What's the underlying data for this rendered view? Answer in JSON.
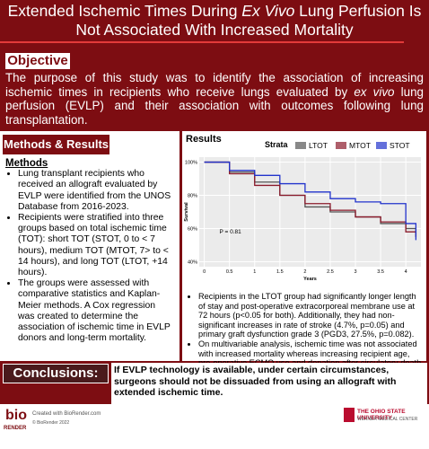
{
  "header": {
    "title": [
      "Extended Ischemic Times During ",
      "Ex Vivo",
      " Lung Perfusion Is Not Associated With Increased Mortality"
    ]
  },
  "objective": {
    "heading": "Objective",
    "text": [
      "The purpose of this study was to identify the association of increasing ischemic times in recipients who receive lungs evaluated by ",
      "ex vivo",
      " lung perfusion (EVLP) and their association with outcomes following lung transplantation."
    ]
  },
  "methods": {
    "section_heading": "Methods & Results",
    "heading": "Methods",
    "bullets": [
      "Lung transplant recipients who received an allograft evaluated by EVLP were identified from the UNOS Database from 2016-2023.",
      "Recipients were stratified into three groups based on total ischemic time (TOT): short TOT (STOT, 0 to < 7 hours), medium TOT (MTOT, 7> to < 14 hours), and long TOT (LTOT, +14 hours).",
      "The groups were assessed with comparative statistics and Kaplan-Meier methods. A Cox regression was created to determine the association of ischemic time in EVLP donors and long-term mortality."
    ]
  },
  "results": {
    "heading": "Results",
    "bullets": [
      "Recipients in the LTOT group had significantly longer length of stay and post-operative extracorporeal membrane use at 72 hours (p<0.05 for both).  Additionally, they had non-significant increases in rate of stroke (4.7%, p=0.05) and primary graft dysfunction grade 3 (PGD3, 27.5%, p=0.082).",
      "On multivariable analysis, ischemic time was not associated with increased mortality whereas increasing recipient age, pre-operative ECMO use and donation after circulatory death donors were (p< 0.05 for all)."
    ]
  },
  "conclusions": {
    "heading": "Conclusions:",
    "text": "If EVLP technology is available, under certain circumstances, surgeons should not be dissuaded from using an allograft with extended ischemic time."
  },
  "footer": {
    "logo_top": "bio",
    "logo_bottom": "RENDER",
    "created": "Created with BioRender.com",
    "copyright": "© BioRender 2022",
    "university": "THE OHIO STATE UNIVERSITY",
    "center": "WEXNER MEDICAL CENTER"
  },
  "chart_data": {
    "type": "line",
    "legend_title": "Strata",
    "x_label": "Years",
    "y_label": "Survival",
    "annotation": "P = 0.81",
    "x": [
      0,
      0.5,
      1,
      1.5,
      2,
      2.5,
      3,
      3.5,
      4,
      4.2
    ],
    "series": [
      {
        "name": "LTOT",
        "color": "#555555",
        "values": [
          100,
          94,
          88,
          80,
          73,
          70,
          67,
          63,
          60,
          55
        ]
      },
      {
        "name": "MTOT",
        "color": "#8b1a2b",
        "values": [
          100,
          93,
          86,
          80,
          75,
          71,
          67,
          64,
          58,
          55
        ]
      },
      {
        "name": "STOT",
        "color": "#2233cc",
        "values": [
          100,
          95,
          92,
          87,
          82,
          78,
          76,
          75,
          63,
          53
        ]
      }
    ],
    "xlim": [
      -0.1,
      4.3
    ],
    "xticks": [
      0,
      0.5,
      1,
      1.5,
      2,
      2.5,
      3,
      3.5,
      4
    ],
    "ylim": [
      37,
      103
    ],
    "yticks": [
      {
        "value": 40,
        "label": "40%"
      },
      {
        "value": 60,
        "label": "60%"
      },
      {
        "value": 80,
        "label": "80%"
      },
      {
        "value": 100,
        "label": "100%"
      }
    ],
    "grid": true
  }
}
